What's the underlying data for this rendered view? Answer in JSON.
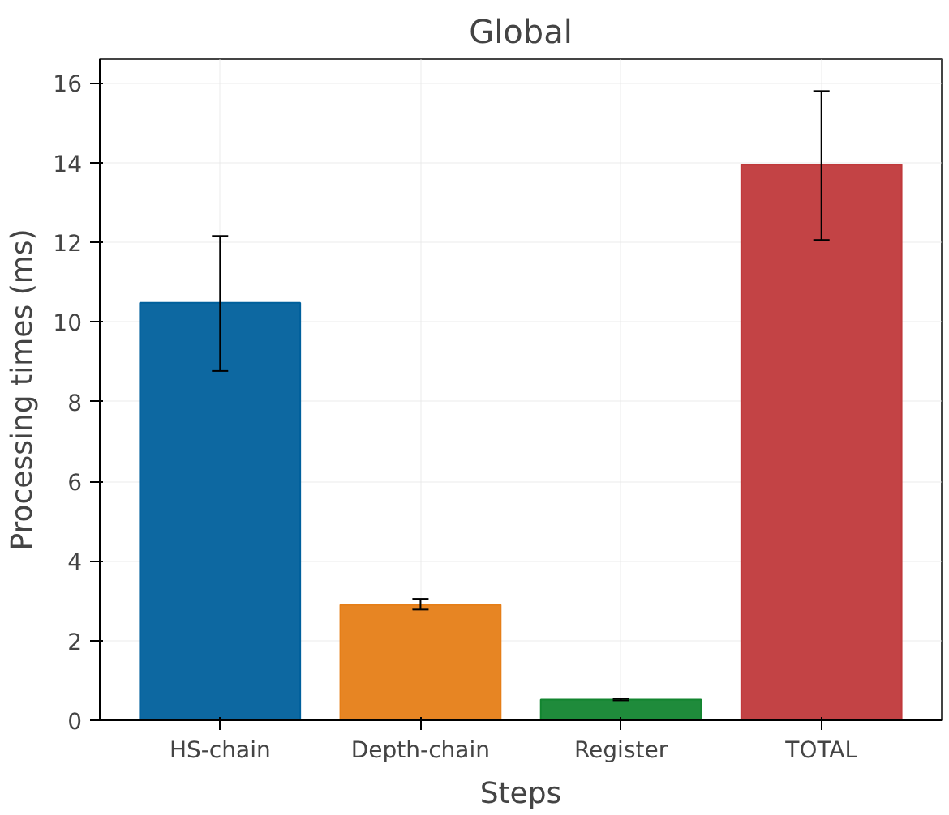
{
  "chart_data": {
    "type": "bar",
    "title": "Global",
    "xlabel": "Steps",
    "ylabel": "Processing times (ms)",
    "categories": [
      "HS-chain",
      "Depth-chain",
      "Register",
      "TOTAL"
    ],
    "values": [
      10.48,
      2.9,
      0.52,
      13.95
    ],
    "errors": [
      [
        8.77,
        12.16
      ],
      [
        2.78,
        3.05
      ],
      [
        0.5,
        0.54
      ],
      [
        12.06,
        15.8
      ]
    ],
    "colors": [
      "#00609c",
      "#e67e17",
      "#138530",
      "#c0393b"
    ],
    "ylim": [
      0,
      16.6
    ],
    "yticks": [
      0,
      2,
      4,
      6,
      8,
      10,
      12,
      14,
      16
    ],
    "grid": true
  }
}
